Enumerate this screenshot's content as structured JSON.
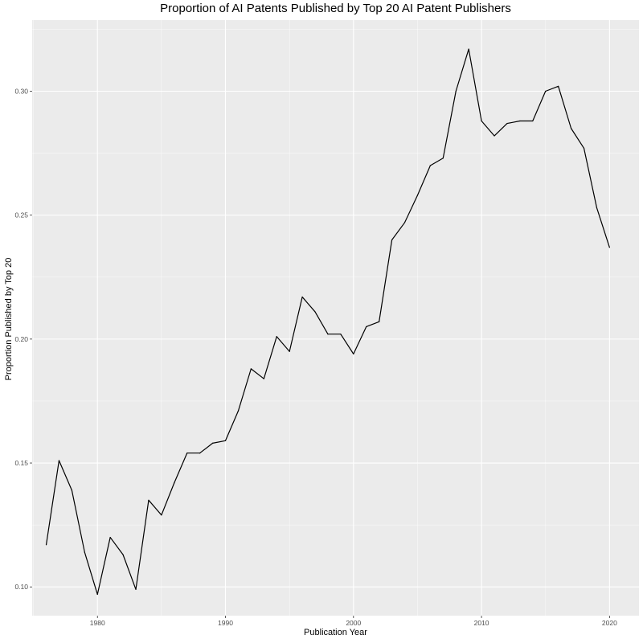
{
  "chart_data": {
    "type": "line",
    "title": "Proportion of AI Patents Published by Top 20 AI Patent Publishers",
    "xlabel": "Publication Year",
    "ylabel": "Proportion Published by Top 20",
    "xlim": [
      1974.9,
      2022.3
    ],
    "ylim": [
      0.0884,
      0.3287
    ],
    "x_ticks": [
      1980,
      1990,
      2000,
      2010,
      2020
    ],
    "x_tick_labels": [
      "1980",
      "1990",
      "2000",
      "2010",
      "2020"
    ],
    "y_ticks": [
      0.1,
      0.15,
      0.2,
      0.25,
      0.3
    ],
    "y_tick_labels": [
      "0.10",
      "0.15",
      "0.20",
      "0.25",
      "0.30"
    ],
    "grid": true,
    "series": [
      {
        "color": "#000000",
        "x": [
          1976,
          1977,
          1978,
          1979,
          1980,
          1981,
          1982,
          1983,
          1984,
          1985,
          1986,
          1987,
          1988,
          1989,
          1990,
          1991,
          1992,
          1993,
          1994,
          1995,
          1996,
          1997,
          1998,
          1999,
          2000,
          2001,
          2002,
          2003,
          2004,
          2005,
          2006,
          2007,
          2008,
          2009,
          2010,
          2011,
          2012,
          2013,
          2014,
          2015,
          2016,
          2017,
          2018,
          2019,
          2020
        ],
        "y": [
          0.117,
          0.151,
          0.139,
          0.114,
          0.097,
          0.12,
          0.113,
          0.099,
          0.135,
          0.129,
          0.142,
          0.154,
          0.154,
          0.158,
          0.159,
          0.171,
          0.188,
          0.184,
          0.201,
          0.195,
          0.217,
          0.211,
          0.202,
          0.202,
          0.194,
          0.205,
          0.207,
          0.24,
          0.247,
          0.258,
          0.27,
          0.273,
          0.3,
          0.317,
          0.288,
          0.282,
          0.287,
          0.288,
          0.288,
          0.3,
          0.302,
          0.285,
          0.277,
          0.253,
          0.237
        ]
      }
    ]
  },
  "colors": {
    "panel_background": "#ebebeb",
    "grid_major": "#ffffff",
    "line": "#000000",
    "tick_text": "#4d4d4d"
  }
}
